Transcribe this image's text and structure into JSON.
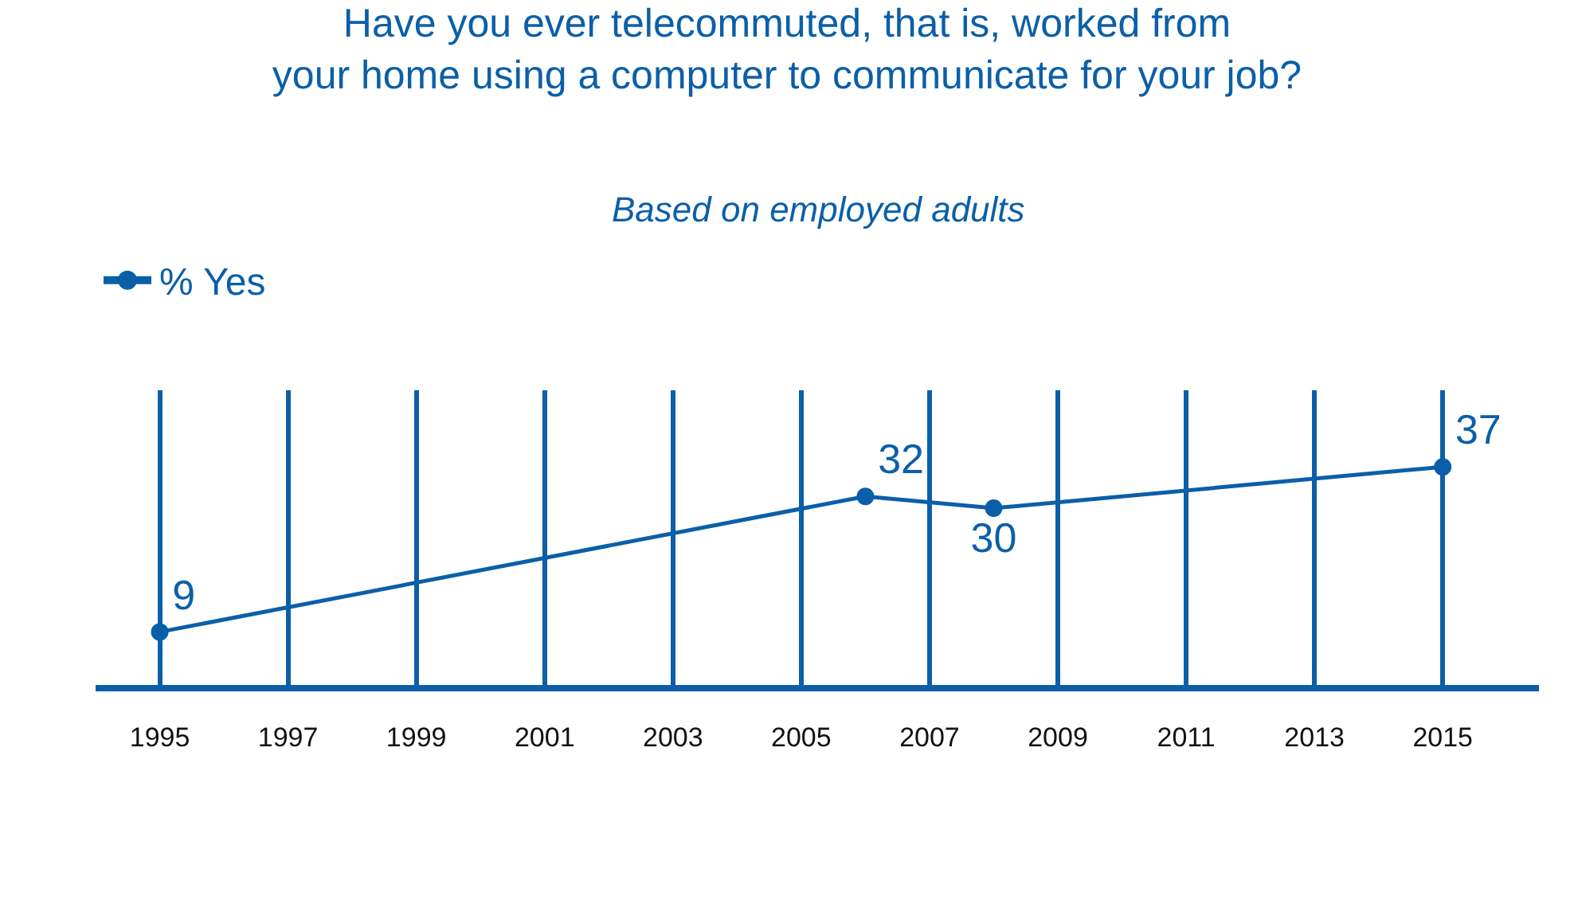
{
  "chart_data": {
    "type": "line",
    "title": "Have you ever telecommuted, that is, worked from\nyour home using a computer to communicate for your job?",
    "subtitle": "Based on employed adults",
    "x": [
      1995,
      2006,
      2008,
      2015
    ],
    "series": [
      {
        "name": "% Yes",
        "color": "#0b5fa8",
        "values": [
          9,
          32,
          30,
          37
        ]
      }
    ],
    "xlim": [
      1994,
      2016.5
    ],
    "xticks": [
      1995,
      1997,
      1999,
      2001,
      2003,
      2005,
      2007,
      2009,
      2011,
      2013,
      2015
    ],
    "ylim": [
      0,
      50
    ],
    "tick_labels": "x",
    "grid": "x",
    "legend": "top left",
    "marker": "circle",
    "line_style": "solid",
    "data_labels": true
  }
}
